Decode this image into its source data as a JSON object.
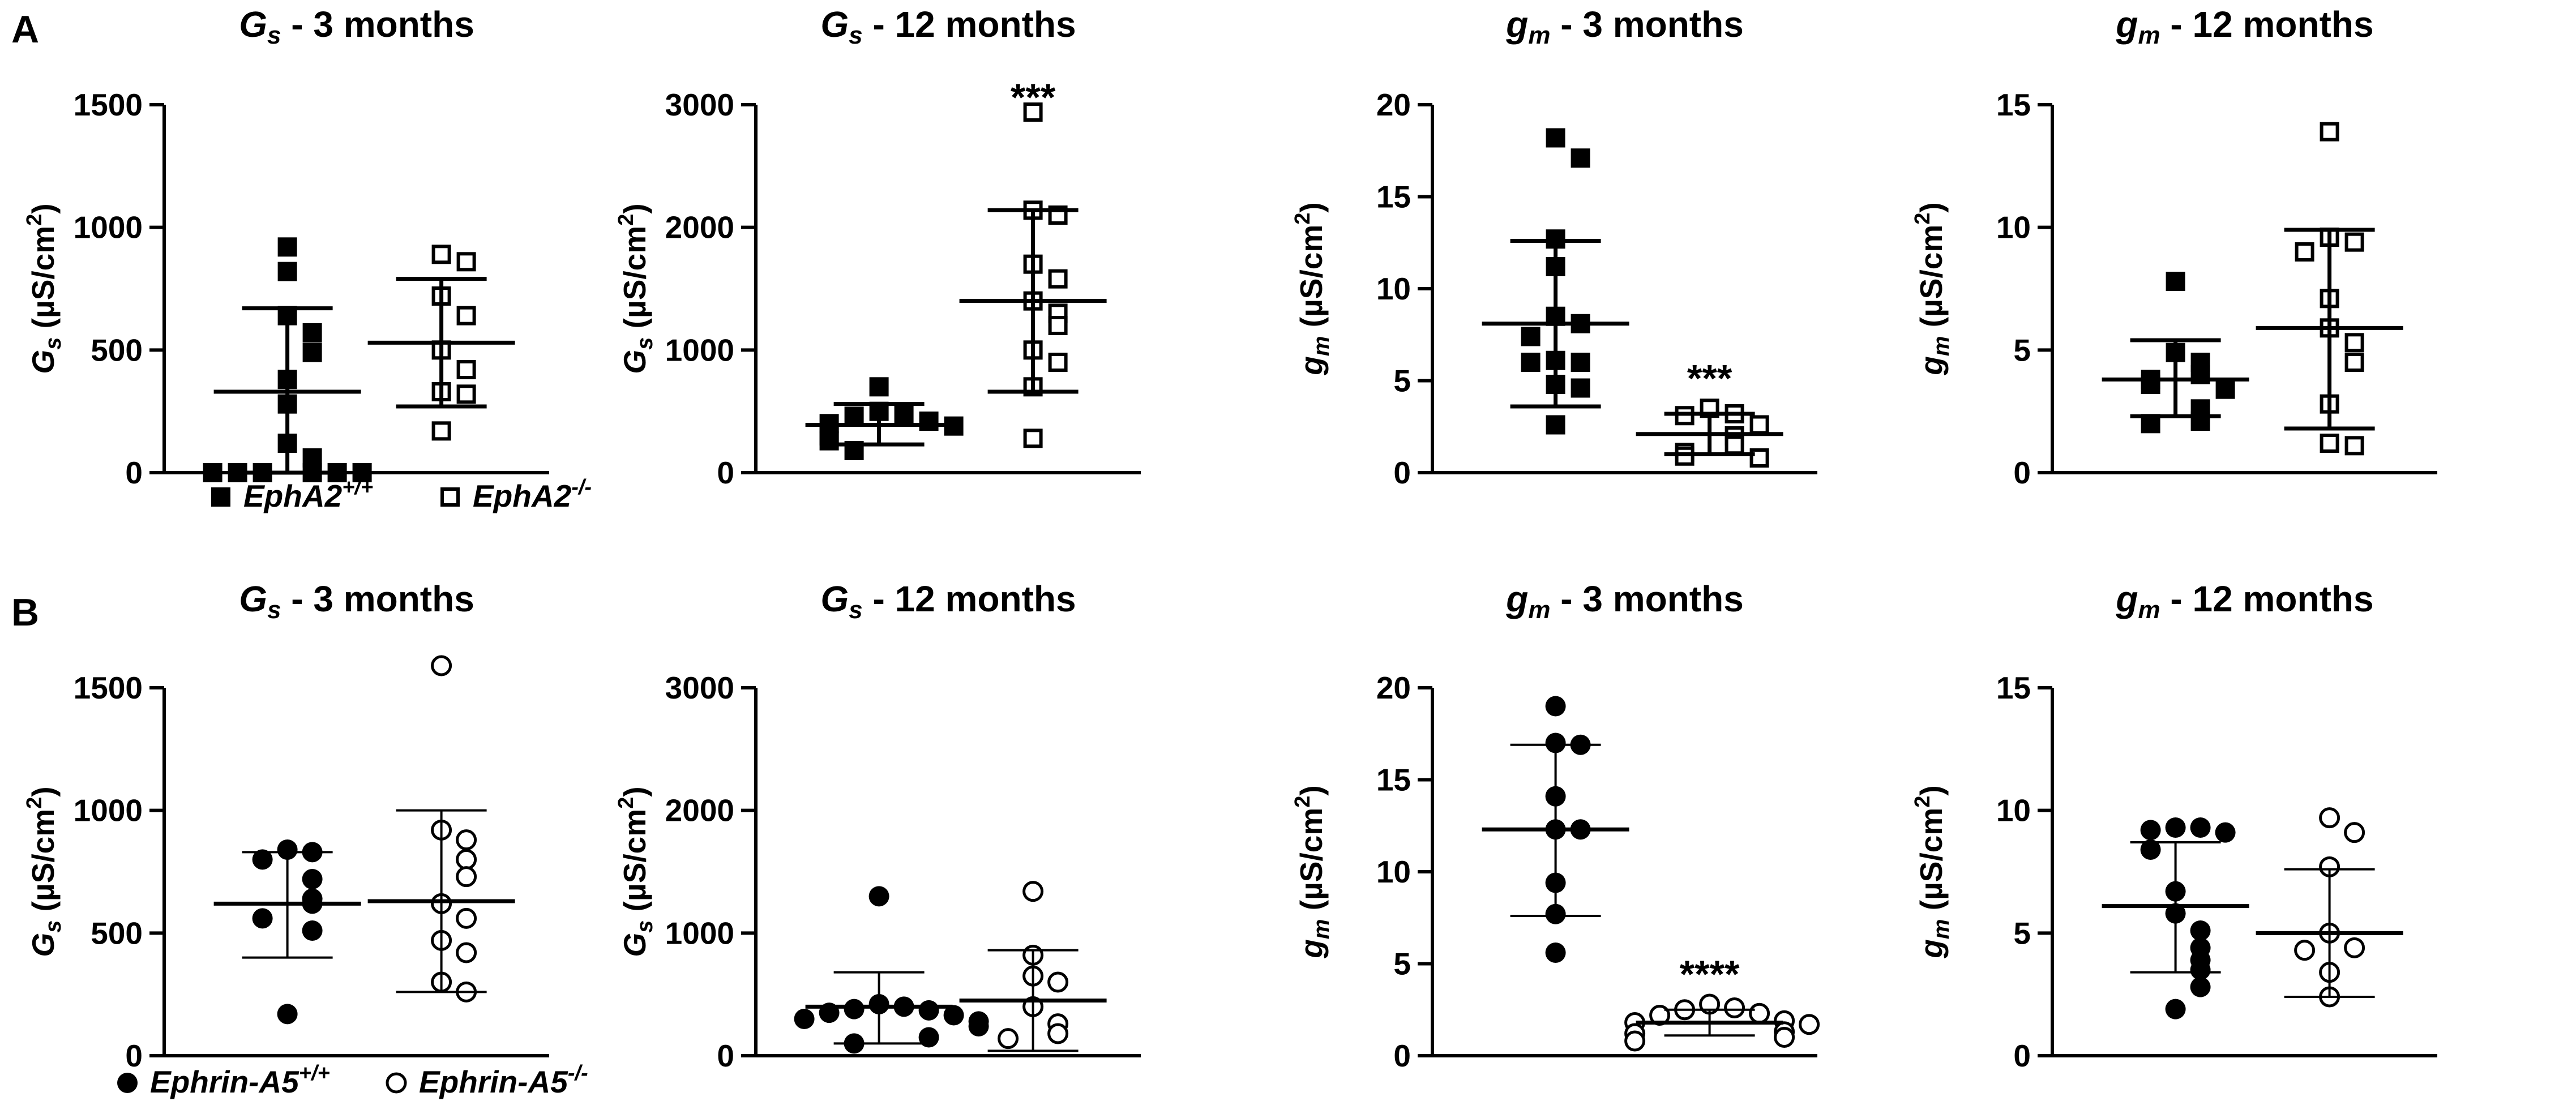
{
  "panel_labels": [
    "A",
    "B"
  ],
  "legend": {
    "A": [
      {
        "marker": "filled-square",
        "label": "EphA2",
        "sup": "+/+"
      },
      {
        "marker": "open-square",
        "label": "EphA2",
        "sup": "-/-"
      }
    ],
    "B": [
      {
        "marker": "filled-circle",
        "label": "Ephrin-A5",
        "sup": "+/+"
      },
      {
        "marker": "open-circle",
        "label": "Ephrin-A5",
        "sup": "-/-"
      }
    ]
  },
  "chart_data": [
    {
      "row": "A",
      "col": 0,
      "type": "scatter",
      "title_var": "G",
      "title_sub": "s",
      "title_rest": " - 3 months",
      "ylabel_var": "G",
      "ylabel_sub": "s",
      "ylabel_unit": " (µS/cm",
      "ylabel_sup": "2",
      "ylabel_close": ")",
      "ylim": [
        0,
        1500
      ],
      "yticks": [
        0,
        500,
        1000,
        1500
      ],
      "series": [
        {
          "name": "EphA2+/+",
          "marker": "filled-square",
          "summary": {
            "mean": 330,
            "upper": 670,
            "lower": 0
          },
          "thick_error_bars": true,
          "values": [
            920,
            820,
            640,
            570,
            490,
            380,
            280,
            120,
            60,
            0,
            0,
            0,
            0,
            0,
            0
          ]
        },
        {
          "name": "EphA2-/-",
          "marker": "open-square",
          "summary": {
            "mean": 530,
            "upper": 790,
            "lower": 270
          },
          "thick_error_bars": true,
          "values": [
            890,
            860,
            720,
            640,
            500,
            420,
            330,
            320,
            170
          ]
        }
      ],
      "significance": [
        "",
        ""
      ]
    },
    {
      "row": "A",
      "col": 1,
      "type": "scatter",
      "title_var": "G",
      "title_sub": "s",
      "title_rest": " - 12 months",
      "ylabel_var": "G",
      "ylabel_sub": "s",
      "ylabel_unit": " (µS/cm",
      "ylabel_sup": "2",
      "ylabel_close": ")",
      "ylim": [
        0,
        3000
      ],
      "yticks": [
        0,
        1000,
        2000,
        3000
      ],
      "series": [
        {
          "name": "EphA2+/+",
          "marker": "filled-square",
          "summary": {
            "mean": 390,
            "upper": 560,
            "lower": 230
          },
          "thick_error_bars": true,
          "values": [
            700,
            500,
            480,
            460,
            420,
            400,
            380,
            300,
            260,
            180
          ]
        },
        {
          "name": "EphA2-/-",
          "marker": "open-square",
          "summary": {
            "mean": 1400,
            "upper": 2140,
            "lower": 660
          },
          "thick_error_bars": true,
          "values": [
            2940,
            2140,
            2100,
            1700,
            1580,
            1400,
            1300,
            1200,
            1000,
            900,
            700,
            280
          ]
        }
      ],
      "significance": [
        "",
        "***"
      ]
    },
    {
      "row": "A",
      "col": 2,
      "type": "scatter",
      "title_var": "g",
      "title_sub": "m",
      "title_rest": " - 3 months",
      "ylabel_var": "g",
      "ylabel_sub": "m",
      "ylabel_unit": " (µS/cm",
      "ylabel_sup": "2",
      "ylabel_close": ")",
      "ylim": [
        0,
        20
      ],
      "yticks": [
        0,
        5,
        10,
        15,
        20
      ],
      "series": [
        {
          "name": "EphA2+/+",
          "marker": "filled-square",
          "summary": {
            "mean": 8.1,
            "upper": 12.6,
            "lower": 3.6
          },
          "thick_error_bars": true,
          "values": [
            18.2,
            17.1,
            12.7,
            11.2,
            8.5,
            8.1,
            7.4,
            6.1,
            6.0,
            6.0,
            4.8,
            4.6,
            2.6
          ]
        },
        {
          "name": "EphA2-/-",
          "marker": "open-square",
          "summary": {
            "mean": 2.1,
            "upper": 3.2,
            "lower": 1.0
          },
          "thick_error_bars": true,
          "values": [
            3.5,
            3.2,
            3.1,
            2.6,
            2.0,
            1.5,
            1.1,
            0.9,
            0.8
          ]
        }
      ],
      "significance": [
        "",
        "***"
      ]
    },
    {
      "row": "A",
      "col": 3,
      "type": "scatter",
      "title_var": "g",
      "title_sub": "m",
      "title_rest": " - 12 months",
      "ylabel_var": "g",
      "ylabel_sub": "m",
      "ylabel_unit": " (µS/cm",
      "ylabel_sup": "2",
      "ylabel_close": ")",
      "ylim": [
        0,
        15
      ],
      "yticks": [
        0,
        5,
        10,
        15
      ],
      "series": [
        {
          "name": "EphA2+/+",
          "marker": "filled-square",
          "summary": {
            "mean": 3.8,
            "upper": 5.4,
            "lower": 2.3
          },
          "thick_error_bars": true,
          "values": [
            7.8,
            4.9,
            4.5,
            4.0,
            3.8,
            3.6,
            3.4,
            2.6,
            2.1,
            2.0
          ]
        },
        {
          "name": "EphA2-/-",
          "marker": "open-square",
          "summary": {
            "mean": 5.9,
            "upper": 9.9,
            "lower": 1.8
          },
          "thick_error_bars": true,
          "values": [
            13.9,
            9.6,
            9.4,
            9.0,
            7.1,
            5.9,
            5.3,
            4.5,
            2.8,
            1.2,
            1.1
          ]
        }
      ],
      "significance": [
        "",
        ""
      ]
    },
    {
      "row": "B",
      "col": 0,
      "type": "scatter",
      "title_var": "G",
      "title_sub": "s",
      "title_rest": " - 3 months",
      "ylabel_var": "G",
      "ylabel_sub": "s",
      "ylabel_unit": " (µS/cm",
      "ylabel_sup": "2",
      "ylabel_close": ")",
      "ylim": [
        0,
        1500
      ],
      "yticks": [
        0,
        500,
        1000,
        1500
      ],
      "series": [
        {
          "name": "Ephrin-A5+/+",
          "marker": "filled-circle",
          "summary": {
            "mean": 620,
            "upper": 830,
            "lower": 400
          },
          "thick_error_bars": false,
          "values": [
            840,
            830,
            800,
            720,
            640,
            620,
            560,
            510,
            170
          ]
        },
        {
          "name": "Ephrin-A5-/-",
          "marker": "open-circle",
          "summary": {
            "mean": 630,
            "upper": 1000,
            "lower": 260
          },
          "thick_error_bars": false,
          "values": [
            1590,
            920,
            880,
            800,
            730,
            620,
            560,
            470,
            420,
            300,
            260
          ]
        }
      ],
      "significance": [
        "",
        ""
      ]
    },
    {
      "row": "B",
      "col": 1,
      "type": "scatter",
      "title_var": "G",
      "title_sub": "s",
      "title_rest": " - 12 months",
      "ylabel_var": "G",
      "ylabel_sub": "s",
      "ylabel_unit": " (µS/cm",
      "ylabel_sup": "2",
      "ylabel_close": ")",
      "ylim": [
        0,
        3000
      ],
      "yticks": [
        0,
        1000,
        2000,
        3000
      ],
      "series": [
        {
          "name": "Ephrin-A5+/+",
          "marker": "filled-circle",
          "summary": {
            "mean": 400,
            "upper": 680,
            "lower": 100
          },
          "thick_error_bars": false,
          "values": [
            1300,
            420,
            400,
            380,
            370,
            350,
            330,
            300,
            280,
            240,
            150,
            100
          ]
        },
        {
          "name": "Ephrin-A5-/-",
          "marker": "open-circle",
          "summary": {
            "mean": 450,
            "upper": 860,
            "lower": 40
          },
          "thick_error_bars": false,
          "values": [
            1340,
            820,
            650,
            600,
            400,
            260,
            180,
            140
          ]
        }
      ],
      "significance": [
        "",
        ""
      ]
    },
    {
      "row": "B",
      "col": 2,
      "type": "scatter",
      "title_var": "g",
      "title_sub": "m",
      "title_rest": " - 3 months",
      "ylabel_var": "g",
      "ylabel_sub": "m",
      "ylabel_unit": " (µS/cm",
      "ylabel_sup": "2",
      "ylabel_close": ")",
      "ylim": [
        0,
        20
      ],
      "yticks": [
        0,
        5,
        10,
        15,
        20
      ],
      "series": [
        {
          "name": "Ephrin-A5+/+",
          "marker": "filled-circle",
          "summary": {
            "mean": 12.3,
            "upper": 16.9,
            "lower": 7.6
          },
          "thick_error_bars": false,
          "values": [
            19.0,
            17.0,
            16.9,
            14.1,
            12.3,
            12.3,
            9.4,
            7.7,
            5.6
          ]
        },
        {
          "name": "Ephrin-A5-/-",
          "marker": "open-circle",
          "summary": {
            "mean": 1.8,
            "upper": 2.5,
            "lower": 1.1
          },
          "thick_error_bars": false,
          "values": [
            2.8,
            2.6,
            2.5,
            2.3,
            2.2,
            1.9,
            1.8,
            1.7,
            1.3,
            1.2,
            1.0,
            0.8
          ]
        }
      ],
      "significance": [
        "",
        "****"
      ]
    },
    {
      "row": "B",
      "col": 3,
      "type": "scatter",
      "title_var": "g",
      "title_sub": "m",
      "title_rest": " - 12 months",
      "ylabel_var": "g",
      "ylabel_sub": "m",
      "ylabel_unit": " (µS/cm",
      "ylabel_sup": "2",
      "ylabel_close": ")",
      "ylim": [
        0,
        15
      ],
      "yticks": [
        0,
        5,
        10,
        15
      ],
      "series": [
        {
          "name": "Ephrin-A5+/+",
          "marker": "filled-circle",
          "summary": {
            "mean": 6.1,
            "upper": 8.7,
            "lower": 3.4
          },
          "thick_error_bars": false,
          "values": [
            9.3,
            9.3,
            9.2,
            9.1,
            8.4,
            6.7,
            5.8,
            5.1,
            4.4,
            3.9,
            3.5,
            2.8,
            1.9
          ]
        },
        {
          "name": "Ephrin-A5-/-",
          "marker": "open-circle",
          "summary": {
            "mean": 5.0,
            "upper": 7.6,
            "lower": 2.4
          },
          "thick_error_bars": false,
          "values": [
            9.7,
            9.1,
            7.7,
            5.0,
            4.4,
            4.3,
            3.4,
            2.4
          ]
        }
      ],
      "significance": [
        "",
        ""
      ]
    }
  ]
}
